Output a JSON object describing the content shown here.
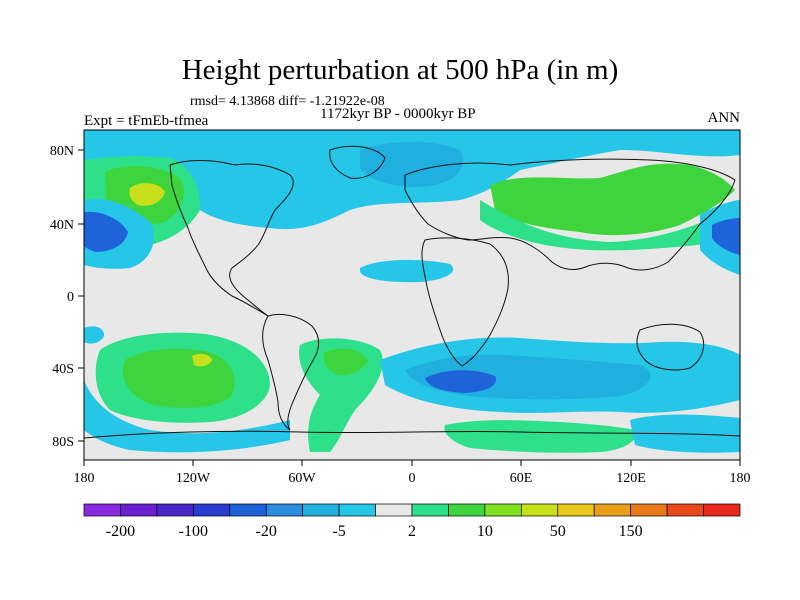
{
  "title": "Height perturbation at 500 hPa (in m)",
  "stats": "rmsd= 4.13868 diff= -1.21922e-08",
  "period": "1172kyr BP - 0000kyr BP",
  "experiment": "Expt = tFmEb-tfmea",
  "season": "ANN",
  "lat_ticks": [
    "80N",
    "40N",
    "0",
    "40S",
    "80S"
  ],
  "lon_ticks": [
    "180",
    "120W",
    "60W",
    "0",
    "60E",
    "120E",
    "180"
  ],
  "colorbar": {
    "colors": [
      "#8a2be2",
      "#6a1fd0",
      "#4a25c8",
      "#2a3cd0",
      "#1f63d8",
      "#2b8ce0",
      "#1fb0e0",
      "#26c6e8",
      "#e8e8e8",
      "#2ee08a",
      "#3ed43e",
      "#7ee01e",
      "#c8e01a",
      "#e8c81a",
      "#e8a01a",
      "#e8781a",
      "#e8481a",
      "#e8281a"
    ],
    "labels": [
      "-200",
      "-100",
      "-20",
      "-5",
      "2",
      "10",
      "50",
      "150"
    ]
  },
  "colors": {
    "ocean_neutral": "#e8e8e8",
    "neg_light": "#26c6e8",
    "neg_mid": "#1fb0e0",
    "neg_strong": "#1f63d8",
    "pos_light": "#2ee08a",
    "pos_mid": "#3ed43e",
    "pos_strong": "#c8e01a"
  }
}
